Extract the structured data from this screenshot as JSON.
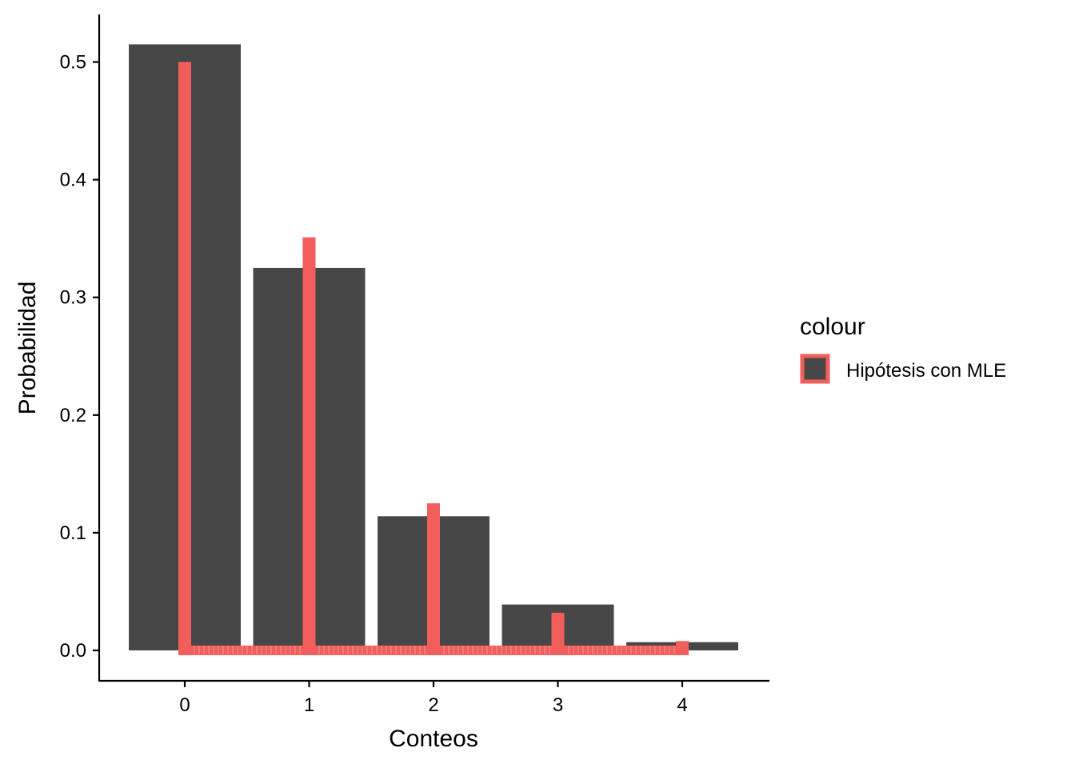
{
  "chart_data": {
    "type": "bar",
    "title": "",
    "xlabel": "Conteos",
    "ylabel": "Probabilidad",
    "categories": [
      "0",
      "1",
      "2",
      "3",
      "4"
    ],
    "x": [
      0,
      1,
      2,
      3,
      4
    ],
    "ylim": [
      0,
      0.5
    ],
    "yticks": [
      "0.0",
      "0.1",
      "0.2",
      "0.3",
      "0.4",
      "0.5"
    ],
    "grid": false,
    "legend_position": "right",
    "legend": {
      "title": "colour",
      "entries": [
        "Hipótesis con MLE"
      ]
    },
    "series": [
      {
        "kind": "bar",
        "values": [
          0.515,
          0.325,
          0.114,
          0.039,
          0.007
        ],
        "color": "#474747"
      },
      {
        "name": "Hipótesis con MLE",
        "kind": "spike",
        "values": [
          0.5,
          0.351,
          0.125,
          0.032,
          0.008
        ],
        "color": "#F15E5B"
      }
    ]
  }
}
